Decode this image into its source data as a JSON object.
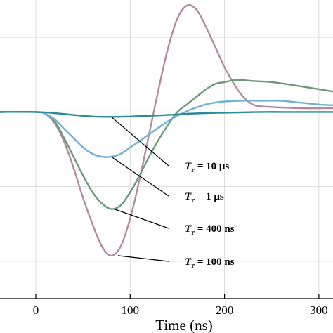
{
  "chart_data": {
    "type": "line",
    "xlabel": "Time (ns)",
    "x_ticks": [
      0,
      100,
      200,
      300
    ],
    "x_tick_labels": [
      "0",
      "100",
      "200",
      "300"
    ],
    "xlim": [
      -38,
      315
    ],
    "ylim": [
      -5.0,
      3.0
    ],
    "y_gridlines": [
      -4,
      -2,
      0,
      2
    ],
    "grid": true,
    "colors": {
      "100ns": "#b48aa0",
      "400ns": "#6a9a7a",
      "1us": "#6fb0d8",
      "10us": "#2a8a98"
    },
    "series": [
      {
        "key": "100ns",
        "x": [
          -38,
          0,
          10,
          20,
          30,
          40,
          50,
          60,
          70,
          80,
          90,
          100,
          110,
          120,
          130,
          140,
          150,
          160,
          170,
          180,
          190,
          200,
          210,
          220,
          230,
          240,
          260,
          280,
          300,
          315
        ],
        "y": [
          0,
          0,
          -0.05,
          -0.3,
          -0.8,
          -1.5,
          -2.3,
          -3.0,
          -3.6,
          -3.85,
          -3.6,
          -2.85,
          -1.8,
          -0.6,
          0.6,
          1.7,
          2.5,
          2.85,
          2.75,
          2.3,
          1.75,
          1.2,
          0.75,
          0.4,
          0.2,
          0.15,
          0.12,
          0.1,
          0.1,
          0.1
        ]
      },
      {
        "key": "400ns",
        "x": [
          -38,
          0,
          10,
          20,
          30,
          40,
          50,
          60,
          70,
          80,
          90,
          100,
          110,
          120,
          130,
          140,
          150,
          160,
          170,
          180,
          190,
          200,
          210,
          220,
          230,
          250,
          270,
          290,
          315
        ],
        "y": [
          0,
          0,
          -0.05,
          -0.25,
          -0.7,
          -1.2,
          -1.7,
          -2.15,
          -2.45,
          -2.6,
          -2.5,
          -2.15,
          -1.7,
          -1.2,
          -0.75,
          -0.35,
          0.0,
          0.2,
          0.4,
          0.6,
          0.75,
          0.8,
          0.85,
          0.85,
          0.83,
          0.8,
          0.73,
          0.65,
          0.55
        ]
      },
      {
        "key": "1us",
        "x": [
          -38,
          0,
          10,
          20,
          30,
          40,
          50,
          60,
          70,
          80,
          90,
          100,
          110,
          120,
          130,
          140,
          150,
          160,
          170,
          180,
          190,
          200,
          220,
          240,
          260,
          280,
          300,
          315
        ],
        "y": [
          0,
          0,
          -0.05,
          -0.2,
          -0.45,
          -0.7,
          -0.95,
          -1.12,
          -1.2,
          -1.2,
          -1.12,
          -0.95,
          -0.78,
          -0.6,
          -0.42,
          -0.25,
          -0.1,
          0.02,
          0.12,
          0.2,
          0.25,
          0.28,
          0.3,
          0.3,
          0.3,
          0.25,
          0.2,
          0.18
        ]
      },
      {
        "key": "10us",
        "x": [
          -38,
          0,
          20,
          40,
          60,
          80,
          100,
          120,
          140,
          160,
          180,
          200,
          220,
          240,
          260,
          280,
          300,
          315
        ],
        "y": [
          0,
          0,
          -0.03,
          -0.08,
          -0.12,
          -0.13,
          -0.12,
          -0.1,
          -0.08,
          -0.05,
          -0.03,
          -0.02,
          -0.01,
          0,
          0,
          0,
          0,
          0
        ]
      }
    ],
    "annotations": [
      {
        "series": "10us",
        "label_main": "T",
        "label_sub": "r",
        "label_rest": " = 10 μs",
        "anchor_x": 80,
        "anchor_y": -0.13
      },
      {
        "series": "1us",
        "label_main": "T",
        "label_sub": "r",
        "label_rest": " = 1 μs",
        "anchor_x": 80,
        "anchor_y": -1.2
      },
      {
        "series": "400ns",
        "label_main": "T",
        "label_sub": "r",
        "label_rest": " = 400 ns",
        "anchor_x": 83,
        "anchor_y": -2.6
      },
      {
        "series": "100ns",
        "label_main": "T",
        "label_sub": "r",
        "label_rest": " = 100 ns",
        "anchor_x": 87,
        "anchor_y": -3.85
      }
    ]
  }
}
